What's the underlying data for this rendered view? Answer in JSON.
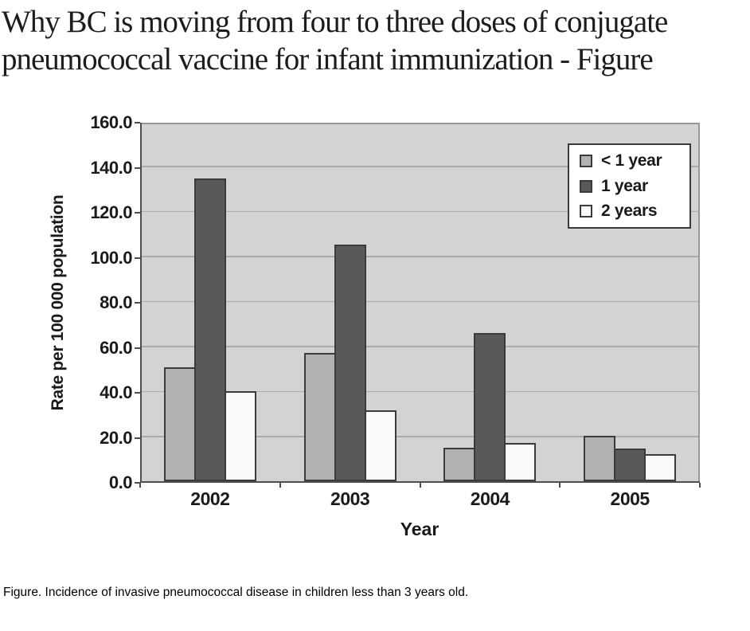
{
  "title": {
    "lines": [
      "Why BC is moving from four to three doses of conjugate",
      "pneumococcal vaccine for infant immunization - Figure"
    ]
  },
  "caption": {
    "text": "Figure. Incidence of invasive pneumococcal disease in children less than 3 years old."
  },
  "chart_data": {
    "type": "bar",
    "title": "",
    "categories": [
      "2002",
      "2003",
      "2004",
      "2005"
    ],
    "series": [
      {
        "name": "< 1 year",
        "color": "#b2b2b4",
        "values": [
          50.5,
          57.0,
          15.0,
          20.0
        ]
      },
      {
        "name": "1 year",
        "color": "#59595c",
        "values": [
          134.5,
          105.0,
          66.0,
          14.5
        ]
      },
      {
        "name": "2 years",
        "color": "#f9f9f9",
        "values": [
          40.0,
          31.5,
          17.0,
          12.0
        ]
      }
    ],
    "xlabel": "Year",
    "ylabel": "Rate per 100 000 population",
    "ylim": [
      0,
      160
    ],
    "ytick_step": 20,
    "ytick_labels": [
      "0.0",
      "20.0",
      "40.0",
      "60.0",
      "80.0",
      "100.0",
      "120.0",
      "140.0",
      "160.0"
    ],
    "grid": true,
    "legend_position": "top-right",
    "colors": {
      "plot_bg": "#d2d3d5",
      "gridline": "#a9abad",
      "frame": "#98989b",
      "axis": "#4e4e51",
      "bar_border": "#3b3b3e",
      "legend_bg": "#ffffff",
      "text": "#1a1a1a"
    }
  }
}
